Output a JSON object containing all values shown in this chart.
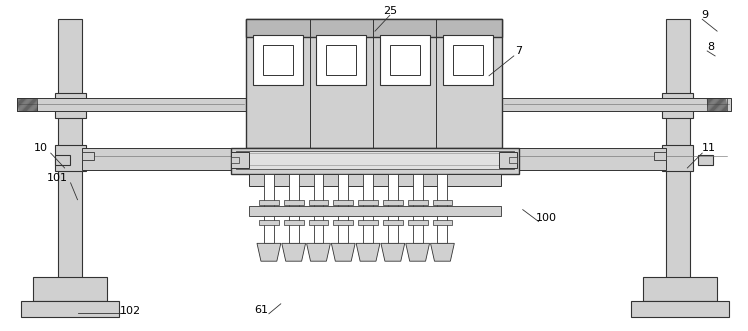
{
  "bg_color": "#ffffff",
  "lc": "#333333",
  "gray": "#d0d0d0",
  "white": "#ffffff",
  "figsize": [
    7.48,
    3.31
  ],
  "dpi": 100
}
